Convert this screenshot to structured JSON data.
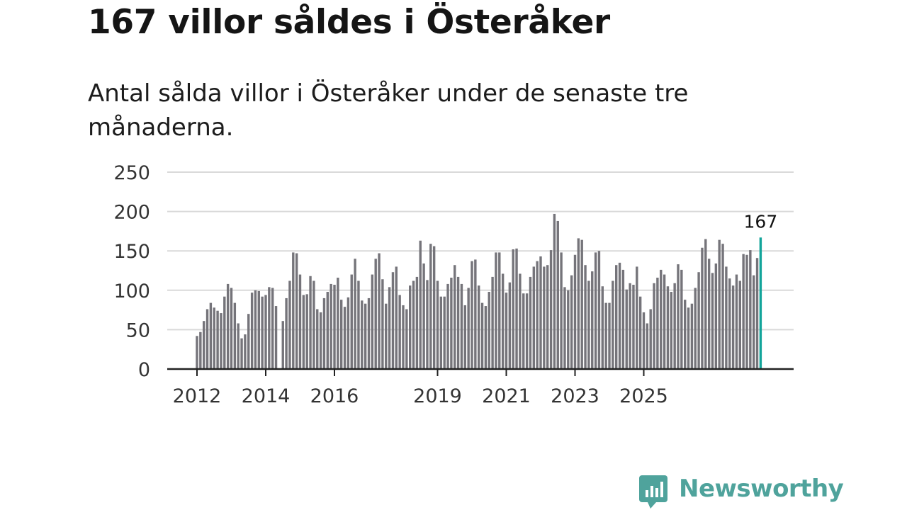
{
  "title": "167 villor såldes i Österåker",
  "subtitle": "Antal sålda villor i Österåker under de senaste tre månaderna.",
  "brand": "Newsworthy",
  "colors": {
    "bar": "#75747a",
    "highlight": "#12a49a",
    "grid": "#d9d9d9",
    "axis": "#222222",
    "brand": "#4fa39c"
  },
  "chart_data": {
    "type": "bar",
    "title": "167 villor såldes i Österåker",
    "ylabel": "",
    "xlabel": "",
    "ylim": [
      0,
      250
    ],
    "yticks": [
      0,
      50,
      100,
      150,
      200,
      250
    ],
    "xticks": [
      {
        "label": "2012",
        "index": 0
      },
      {
        "label": "2014",
        "index": 20
      },
      {
        "label": "2016",
        "index": 40
      },
      {
        "label": "2019",
        "index": 70
      },
      {
        "label": "2021",
        "index": 90
      },
      {
        "label": "2023",
        "index": 110
      },
      {
        "label": "2025",
        "index": 130
      }
    ],
    "start": "2012-01",
    "end": "2025-12",
    "highlight_label": "167",
    "values": [
      42,
      47,
      61,
      76,
      84,
      78,
      74,
      71,
      92,
      108,
      103,
      84,
      58,
      39,
      44,
      70,
      97,
      100,
      99,
      92,
      94,
      104,
      103,
      80,
      0,
      61,
      90,
      112,
      148,
      147,
      120,
      94,
      95,
      118,
      112,
      76,
      72,
      90,
      98,
      108,
      107,
      116,
      88,
      79,
      91,
      120,
      140,
      112,
      87,
      83,
      90,
      120,
      140,
      147,
      114,
      83,
      104,
      123,
      130,
      94,
      81,
      76,
      106,
      112,
      117,
      163,
      134,
      113,
      159,
      156,
      112,
      92,
      92,
      108,
      116,
      132,
      117,
      108,
      81,
      103,
      137,
      139,
      106,
      84,
      80,
      98,
      117,
      148,
      148,
      121,
      97,
      110,
      152,
      153,
      121,
      96,
      96,
      117,
      130,
      137,
      143,
      130,
      132,
      151,
      197,
      188,
      148,
      104,
      100,
      119,
      145,
      166,
      164,
      132,
      112,
      124,
      148,
      150,
      105,
      84,
      84,
      112,
      132,
      135,
      126,
      101,
      109,
      107,
      130,
      92,
      72,
      58,
      76,
      109,
      116,
      126,
      120,
      105,
      98,
      109,
      133,
      126,
      88,
      78,
      83,
      103,
      123,
      154,
      165,
      140,
      122,
      134,
      164,
      159,
      130,
      115,
      106,
      120,
      112,
      146,
      145,
      151,
      119,
      141,
      167
    ]
  }
}
